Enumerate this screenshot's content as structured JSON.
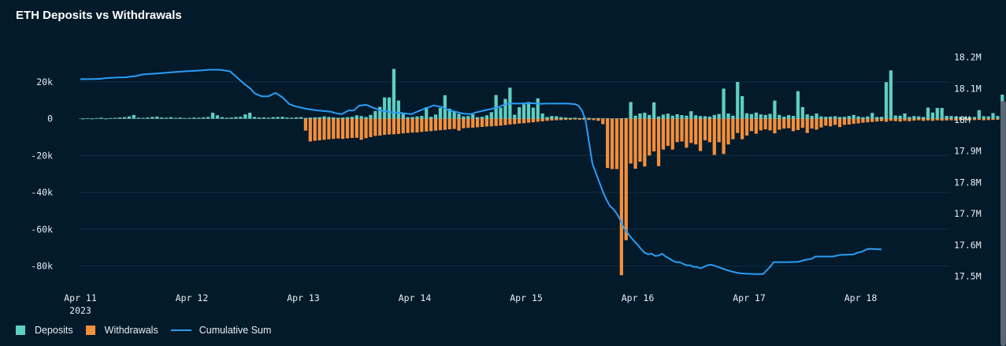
{
  "chart_data": {
    "type": "bar+line",
    "title": "ETH Deposits vs Withdrawals",
    "x_tick_labels": [
      "Apr 11",
      "Apr 12",
      "Apr 13",
      "Apr 14",
      "Apr 15",
      "Apr 16",
      "Apr 17",
      "Apr 18"
    ],
    "x_year_label": "2023",
    "y_left": {
      "ticks": [
        20000,
        0,
        -20000,
        -40000,
        -60000,
        -80000
      ],
      "tick_labels": [
        "20k",
        "0",
        "-20k",
        "-40k",
        "-60k",
        "-80k"
      ],
      "range": [
        -85000,
        35000
      ]
    },
    "y_right": {
      "ticks": [
        18200000,
        18100000,
        18000000,
        17900000,
        17800000,
        17700000,
        17600000,
        17500000
      ],
      "tick_labels": [
        "18.2M",
        "18.1M",
        "18M",
        "17.9M",
        "17.8M",
        "17.7M",
        "17.6M",
        "17.5M"
      ],
      "range": [
        17500000,
        18200000
      ]
    },
    "x_range_days": [
      0,
      7.25
    ],
    "bin_hours": 1,
    "series": [
      {
        "name": "Deposits",
        "color": "#5ecfc3",
        "start_day": 0.0,
        "values": [
          0,
          200,
          0,
          300,
          500,
          0,
          300,
          400,
          600,
          800,
          1200,
          2000,
          500,
          400,
          600,
          900,
          1100,
          600,
          500,
          800,
          400,
          600,
          300,
          400,
          600,
          500,
          700,
          900,
          3200,
          1800,
          800,
          500,
          600,
          900,
          1000,
          2300,
          3200,
          900,
          600,
          700,
          500,
          800,
          900,
          1000,
          600,
          500,
          700,
          800,
          400,
          600,
          700,
          800,
          1200,
          900,
          700,
          500,
          600,
          800,
          1000,
          1800,
          1400,
          900,
          2000,
          4100,
          6400,
          11500,
          11500,
          27000,
          9800,
          2600,
          800,
          900,
          1200,
          1500,
          6200,
          1000,
          2200,
          5800,
          12700,
          5400,
          3600,
          2600,
          1200,
          1400,
          2300,
          800,
          1000,
          1800,
          3500,
          12800,
          5900,
          10700,
          16800,
          2100,
          6200,
          7800,
          9000,
          6000,
          11000,
          2800,
          900,
          1400,
          1300,
          800,
          600,
          400,
          500,
          300,
          600,
          400,
          200,
          300,
          100,
          200,
          0,
          100,
          200,
          300,
          9000,
          1600,
          2800,
          3200,
          2000,
          8800,
          1200,
          2200,
          2700,
          1600,
          2400,
          1900,
          1600,
          4000,
          1800,
          1400,
          1300,
          1100,
          2000,
          2500,
          16300,
          2800,
          1600,
          19900,
          12200,
          2900,
          2500,
          3300,
          2300,
          2000,
          2600,
          9800,
          2000,
          1100,
          1900,
          1500,
          14900,
          6300,
          2300,
          1500,
          2800,
          1200,
          1000,
          1100,
          1300,
          900,
          1000,
          1400,
          2000,
          1200,
          800,
          1200,
          3100,
          900,
          1000,
          19800,
          26200,
          1700,
          1600,
          2800,
          900,
          1400,
          1200,
          900,
          6000,
          3300,
          5800,
          5800,
          1500,
          1400,
          900,
          1000,
          900,
          700,
          900,
          4600,
          1300,
          1200,
          3000,
          1400,
          13000,
          5100,
          1000
        ]
      },
      {
        "name": "Withdrawals",
        "color": "#f38f3b",
        "start_day": 2.0,
        "values": [
          -6500,
          -12400,
          -12000,
          -11800,
          -11500,
          -11200,
          -11000,
          -10800,
          -11000,
          -10700,
          -10500,
          -10400,
          -11500,
          -10600,
          -10000,
          -9400,
          -9200,
          -8800,
          -8600,
          -8500,
          -8300,
          -8000,
          -7800,
          -7600,
          -7500,
          -7200,
          -7000,
          -6800,
          -6500,
          -6300,
          -6100,
          -5800,
          -5600,
          -6500,
          -5200,
          -5000,
          -4900,
          -4700,
          -4500,
          -4300,
          -4200,
          -4000,
          -3800,
          -3500,
          -3200,
          -3000,
          -2700,
          -2500,
          -2200,
          -2000,
          -1700,
          -1500,
          -1200,
          -1000,
          -900,
          -800,
          -700,
          -600,
          -500,
          -600,
          -700,
          -700,
          -800,
          -1200,
          -3000,
          -26800,
          -27400,
          -27400,
          -85000,
          -66000,
          -24400,
          -27200,
          -23400,
          -26000,
          -20000,
          -17800,
          -25800,
          -16800,
          -14800,
          -16800,
          -12800,
          -12400,
          -15800,
          -13200,
          -14000,
          -17600,
          -11800,
          -12800,
          -19700,
          -12800,
          -19200,
          -14000,
          -11200,
          -7800,
          -11200,
          -9200,
          -6800,
          -8200,
          -6400,
          -5800,
          -6400,
          -8000,
          -6000,
          -5400,
          -5200,
          -6800,
          -6200,
          -5000,
          -7800,
          -5400,
          -6000,
          -4800,
          -3800,
          -4200,
          -3400,
          -4600,
          -3400,
          -3200,
          -2800,
          -2600,
          -2200,
          -2000,
          -1800,
          -1600,
          -1400,
          -1700,
          -1200,
          -1400,
          -1600,
          -1200,
          -1400,
          -1100,
          -900,
          -1200,
          -1000,
          -1200,
          -900,
          -1100,
          -1000,
          -900,
          -1100,
          -800,
          -700,
          -900,
          -800,
          -700,
          -900,
          -800,
          -700,
          -600,
          -1000,
          -1300,
          -900,
          -700
        ]
      },
      {
        "name": "Cumulative Sum",
        "color": "#2a9df4",
        "type": "line",
        "points": [
          [
            0,
            18130000
          ],
          [
            0.3,
            18130000
          ],
          [
            0.6,
            18131000
          ],
          [
            0.7,
            18133000
          ],
          [
            1.0,
            18135000
          ],
          [
            1.3,
            18136000
          ],
          [
            1.6,
            18140000
          ],
          [
            1.8,
            18145000
          ],
          [
            2.2,
            18148000
          ],
          [
            2.6,
            18152000
          ],
          [
            3.0,
            18155000
          ],
          [
            3.5,
            18158000
          ],
          [
            3.7,
            18160000
          ],
          [
            4.0,
            18160000
          ],
          [
            4.3,
            18155000
          ],
          [
            4.5,
            18135000
          ],
          [
            4.7,
            18115000
          ],
          [
            4.9,
            18098000
          ],
          [
            5.0,
            18085000
          ],
          [
            5.2,
            18075000
          ],
          [
            5.4,
            18075000
          ],
          [
            5.6,
            18086000
          ],
          [
            5.8,
            18072000
          ],
          [
            6.0,
            18050000
          ],
          [
            6.2,
            18042000
          ],
          [
            6.5,
            18035000
          ],
          [
            6.8,
            18030000
          ],
          [
            7.0,
            18028000
          ],
          [
            7.2,
            18026000
          ],
          [
            7.3,
            18022000
          ],
          [
            7.5,
            18018000
          ],
          [
            7.7,
            18030000
          ],
          [
            7.85,
            18030000
          ],
          [
            8.0,
            18045000
          ],
          [
            8.2,
            18048000
          ],
          [
            8.6,
            18030000
          ],
          [
            8.9,
            18025000
          ],
          [
            9.2,
            18022000
          ],
          [
            9.5,
            18018000
          ],
          [
            9.8,
            18032000
          ],
          [
            10.0,
            18040000
          ],
          [
            10.15,
            18046000
          ],
          [
            10.4,
            18040000
          ],
          [
            10.6,
            18030000
          ],
          [
            10.8,
            18025000
          ],
          [
            11.0,
            18020000
          ],
          [
            11.2,
            18018000
          ],
          [
            11.4,
            18025000
          ],
          [
            11.6,
            18030000
          ],
          [
            11.8,
            18035000
          ],
          [
            12.0,
            18040000
          ],
          [
            12.2,
            18050000
          ],
          [
            12.4,
            18052000
          ],
          [
            12.6,
            18052000
          ],
          [
            12.8,
            18053000
          ],
          [
            13.0,
            18053000
          ],
          [
            13.2,
            18051000
          ],
          [
            13.4,
            18052000
          ],
          [
            13.6,
            18052000
          ],
          [
            13.8,
            18052000
          ],
          [
            14.0,
            18052000
          ],
          [
            14.2,
            18050000
          ],
          [
            14.3,
            18045000
          ],
          [
            14.4,
            18030000
          ],
          [
            14.5,
            18000000
          ],
          [
            14.6,
            17930000
          ],
          [
            14.7,
            17860000
          ],
          [
            14.8,
            17830000
          ],
          [
            14.9,
            17800000
          ],
          [
            15.0,
            17770000
          ],
          [
            15.1,
            17745000
          ],
          [
            15.2,
            17725000
          ],
          [
            15.3,
            17715000
          ],
          [
            15.4,
            17700000
          ],
          [
            15.5,
            17680000
          ],
          [
            15.6,
            17655000
          ],
          [
            15.7,
            17640000
          ],
          [
            15.8,
            17625000
          ],
          [
            15.9,
            17612000
          ],
          [
            16.0,
            17600000
          ],
          [
            16.1,
            17587000
          ],
          [
            16.2,
            17575000
          ],
          [
            16.3,
            17570000
          ],
          [
            16.4,
            17572000
          ],
          [
            16.5,
            17565000
          ],
          [
            16.6,
            17566000
          ],
          [
            16.7,
            17572000
          ],
          [
            16.8,
            17563000
          ],
          [
            16.9,
            17557000
          ],
          [
            17.0,
            17550000
          ],
          [
            17.1,
            17545000
          ],
          [
            17.2,
            17545000
          ],
          [
            17.3,
            17540000
          ],
          [
            17.4,
            17535000
          ],
          [
            17.5,
            17535000
          ],
          [
            17.6,
            17530000
          ],
          [
            17.7,
            17530000
          ],
          [
            17.8,
            17525000
          ],
          [
            17.9,
            17530000
          ],
          [
            18.0,
            17535000
          ],
          [
            18.1,
            17537000
          ],
          [
            18.3,
            17530000
          ],
          [
            18.5,
            17522000
          ],
          [
            18.7,
            17515000
          ],
          [
            18.9,
            17510000
          ],
          [
            19.1,
            17508000
          ],
          [
            19.4,
            17507000
          ],
          [
            19.6,
            17507000
          ],
          [
            19.8,
            17530000
          ],
          [
            19.9,
            17545000
          ],
          [
            20.0,
            17545000
          ],
          [
            20.3,
            17545000
          ],
          [
            20.6,
            17546000
          ],
          [
            20.8,
            17552000
          ],
          [
            21.0,
            17556000
          ],
          [
            21.1,
            17563000
          ],
          [
            21.3,
            17563000
          ],
          [
            21.6,
            17563000
          ],
          [
            21.8,
            17568000
          ],
          [
            22.0,
            17569000
          ],
          [
            22.2,
            17570000
          ],
          [
            22.3,
            17575000
          ],
          [
            22.4,
            17577000
          ],
          [
            22.6,
            17587000
          ],
          [
            22.7,
            17588000
          ],
          [
            22.8,
            17587000
          ],
          [
            23.0,
            17586000
          ]
        ]
      }
    ],
    "legend": [
      "Deposits",
      "Withdrawals",
      "Cumulative Sum"
    ],
    "legend_position": "bottom-left",
    "grid": true
  },
  "legend": {
    "deposits_label": "Deposits",
    "withdrawals_label": "Withdrawals",
    "cumsum_label": "Cumulative Sum",
    "deposits_color": "#5ecfc3",
    "withdrawals_color": "#f38f3b",
    "cumsum_color": "#2a9df4"
  }
}
